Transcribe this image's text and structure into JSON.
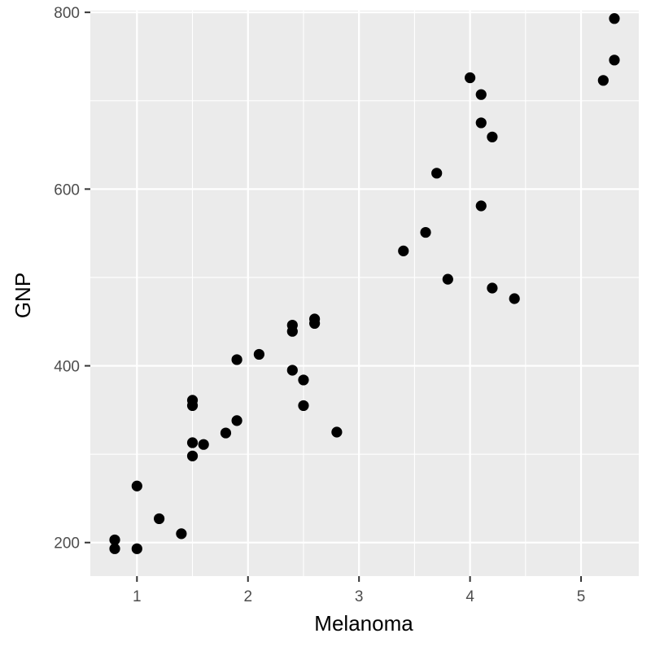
{
  "chart_data": {
    "type": "scatter",
    "title": "",
    "xlabel": "Melanoma",
    "ylabel": "GNP",
    "xlim": [
      0.58,
      5.52
    ],
    "ylim": [
      162,
      802
    ],
    "x_ticks": [
      1,
      2,
      3,
      4,
      5
    ],
    "y_ticks": [
      200,
      400,
      600,
      800
    ],
    "grid": true,
    "legend": "none",
    "colors": {
      "panel": "#ebebeb",
      "grid": "#ffffff",
      "point": "#000000",
      "tick": "#333333"
    },
    "points": [
      {
        "x": 0.8,
        "y": 203
      },
      {
        "x": 0.8,
        "y": 193
      },
      {
        "x": 1.0,
        "y": 264
      },
      {
        "x": 1.0,
        "y": 193
      },
      {
        "x": 1.2,
        "y": 227
      },
      {
        "x": 1.4,
        "y": 210
      },
      {
        "x": 1.5,
        "y": 361
      },
      {
        "x": 1.5,
        "y": 355
      },
      {
        "x": 1.5,
        "y": 313
      },
      {
        "x": 1.5,
        "y": 298
      },
      {
        "x": 1.6,
        "y": 311
      },
      {
        "x": 1.8,
        "y": 324
      },
      {
        "x": 1.9,
        "y": 407
      },
      {
        "x": 1.9,
        "y": 338
      },
      {
        "x": 2.1,
        "y": 413
      },
      {
        "x": 2.4,
        "y": 446
      },
      {
        "x": 2.4,
        "y": 439
      },
      {
        "x": 2.4,
        "y": 395
      },
      {
        "x": 2.5,
        "y": 384
      },
      {
        "x": 2.5,
        "y": 355
      },
      {
        "x": 2.6,
        "y": 453
      },
      {
        "x": 2.6,
        "y": 448
      },
      {
        "x": 2.8,
        "y": 325
      },
      {
        "x": 3.4,
        "y": 530
      },
      {
        "x": 3.6,
        "y": 551
      },
      {
        "x": 3.7,
        "y": 618
      },
      {
        "x": 3.8,
        "y": 498
      },
      {
        "x": 4.0,
        "y": 726
      },
      {
        "x": 4.1,
        "y": 707
      },
      {
        "x": 4.1,
        "y": 675
      },
      {
        "x": 4.1,
        "y": 581
      },
      {
        "x": 4.2,
        "y": 659
      },
      {
        "x": 4.2,
        "y": 488
      },
      {
        "x": 4.4,
        "y": 476
      },
      {
        "x": 5.2,
        "y": 723
      },
      {
        "x": 5.3,
        "y": 793
      },
      {
        "x": 5.3,
        "y": 746
      }
    ]
  }
}
